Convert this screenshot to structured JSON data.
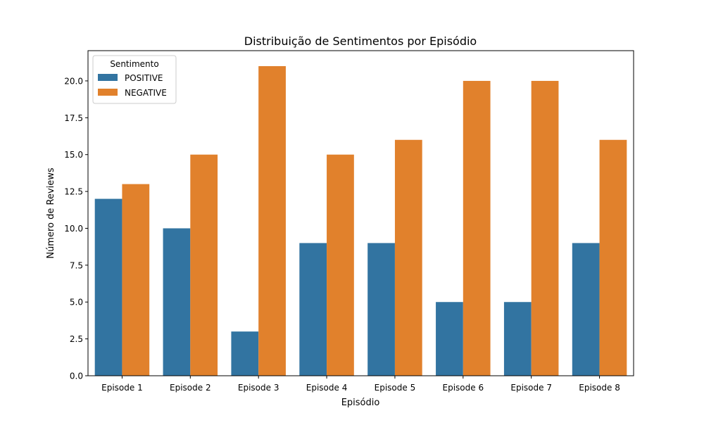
{
  "chart_data": {
    "type": "bar",
    "title": "Distribuição de Sentimentos por Episódio",
    "xlabel": "Episódio",
    "ylabel": "Número de Reviews",
    "categories": [
      "Episode 1",
      "Episode 2",
      "Episode 3",
      "Episode 4",
      "Episode 5",
      "Episode 6",
      "Episode 7",
      "Episode 8"
    ],
    "series": [
      {
        "name": "POSITIVE",
        "color": "#3274a1",
        "values": [
          12,
          10,
          3,
          9,
          9,
          5,
          5,
          9
        ]
      },
      {
        "name": "NEGATIVE",
        "color": "#e1812c",
        "values": [
          13,
          15,
          21,
          15,
          16,
          20,
          20,
          16
        ]
      }
    ],
    "ylim": [
      0,
      22.05
    ],
    "yticks": [
      "0.0",
      "2.5",
      "5.0",
      "7.5",
      "10.0",
      "12.5",
      "15.0",
      "17.5",
      "20.0"
    ],
    "grid": false,
    "legend": {
      "title": "Sentimento",
      "placement": "top-left"
    }
  }
}
